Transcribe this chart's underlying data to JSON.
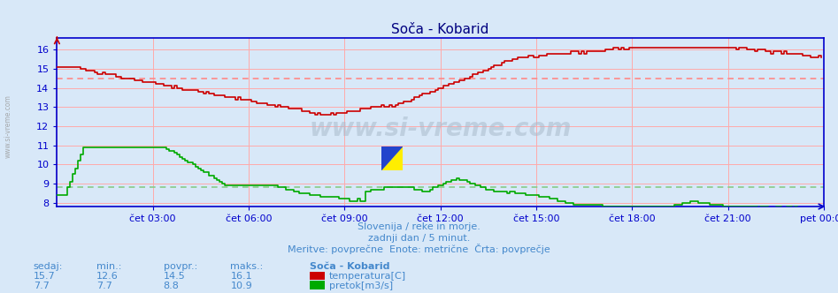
{
  "title": "Soča - Kobarid",
  "bg_color": "#d8e8f8",
  "title_color": "#000080",
  "grid_color_h": "#ffaaaa",
  "grid_color_v": "#ffaaaa",
  "axis_color": "#0000cc",
  "text_color": "#4488cc",
  "ylim": [
    7.8,
    16.6
  ],
  "yticks": [
    8,
    9,
    10,
    11,
    12,
    13,
    14,
    15,
    16
  ],
  "xlabel_times": [
    "čet 03:00",
    "čet 06:00",
    "čet 09:00",
    "čet 12:00",
    "čet 15:00",
    "čet 18:00",
    "čet 21:00",
    "pet 00:00"
  ],
  "temp_avg": 14.5,
  "flow_avg": 8.8,
  "temp_color": "#cc0000",
  "flow_color": "#00aa00",
  "avg_line_color_temp": "#ff8888",
  "avg_line_color_flow": "#88cc88",
  "watermark": "www.si-vreme.com",
  "sub_text1": "Slovenija / reke in morje.",
  "sub_text2": "zadnji dan / 5 minut.",
  "sub_text3": "Meritve: povprečne  Enote: metrične  Črta: povprečje",
  "temp_stats": [
    15.7,
    12.6,
    14.5,
    16.1
  ],
  "flow_stats": [
    7.7,
    7.7,
    8.8,
    10.9
  ],
  "side_label": "www.si-vreme.com",
  "n_points": 288
}
